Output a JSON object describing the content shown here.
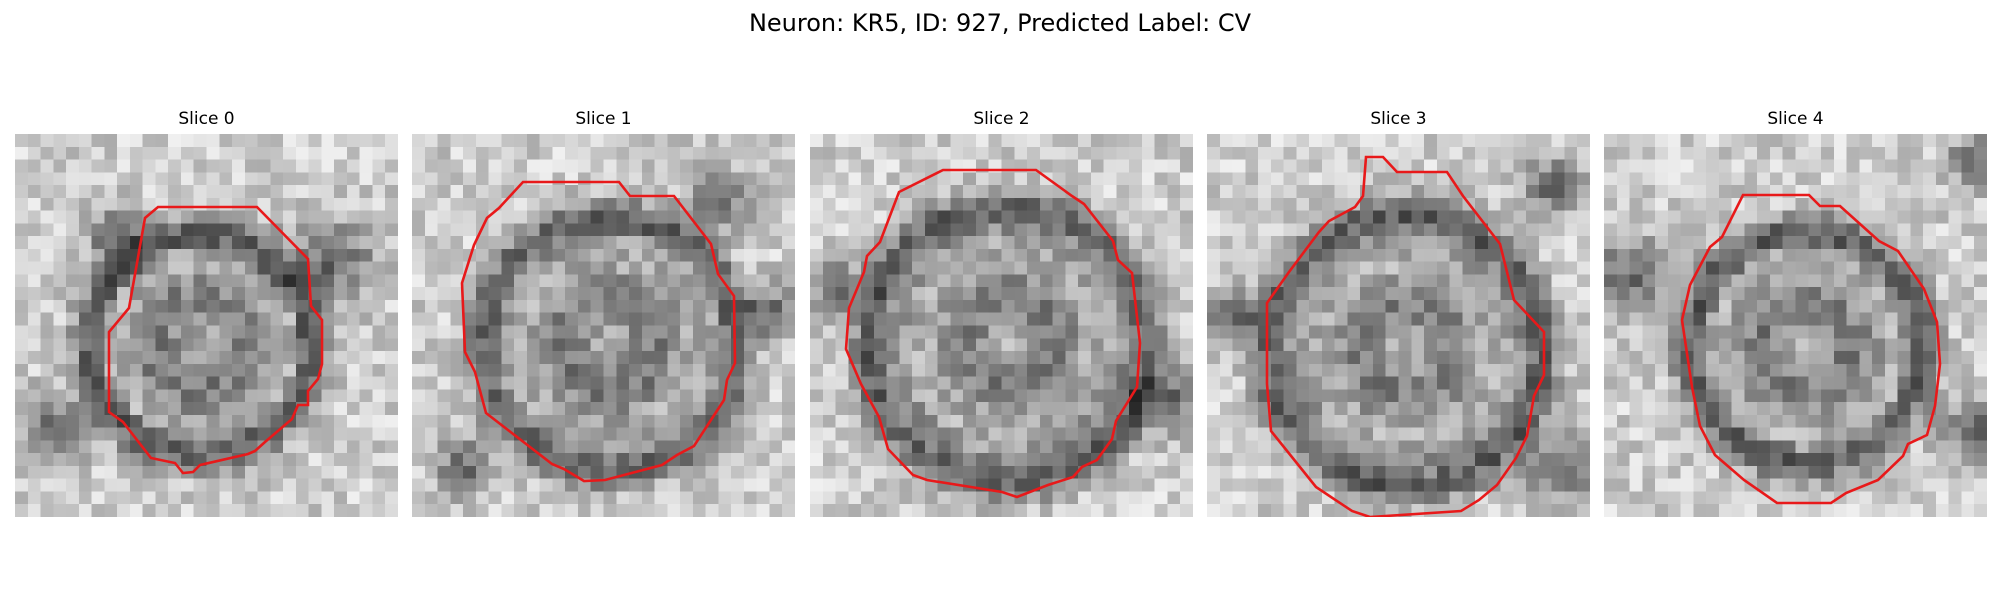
{
  "figure": {
    "title": "Neuron: KR5, ID: 927, Predicted Label: CV",
    "contour_color": "#e8191a",
    "grid_size": 30,
    "slices": [
      {
        "label": "Slice 0"
      },
      {
        "label": "Slice 1"
      },
      {
        "label": "Slice 2"
      },
      {
        "label": "Slice 3"
      },
      {
        "label": "Slice 4"
      }
    ]
  }
}
